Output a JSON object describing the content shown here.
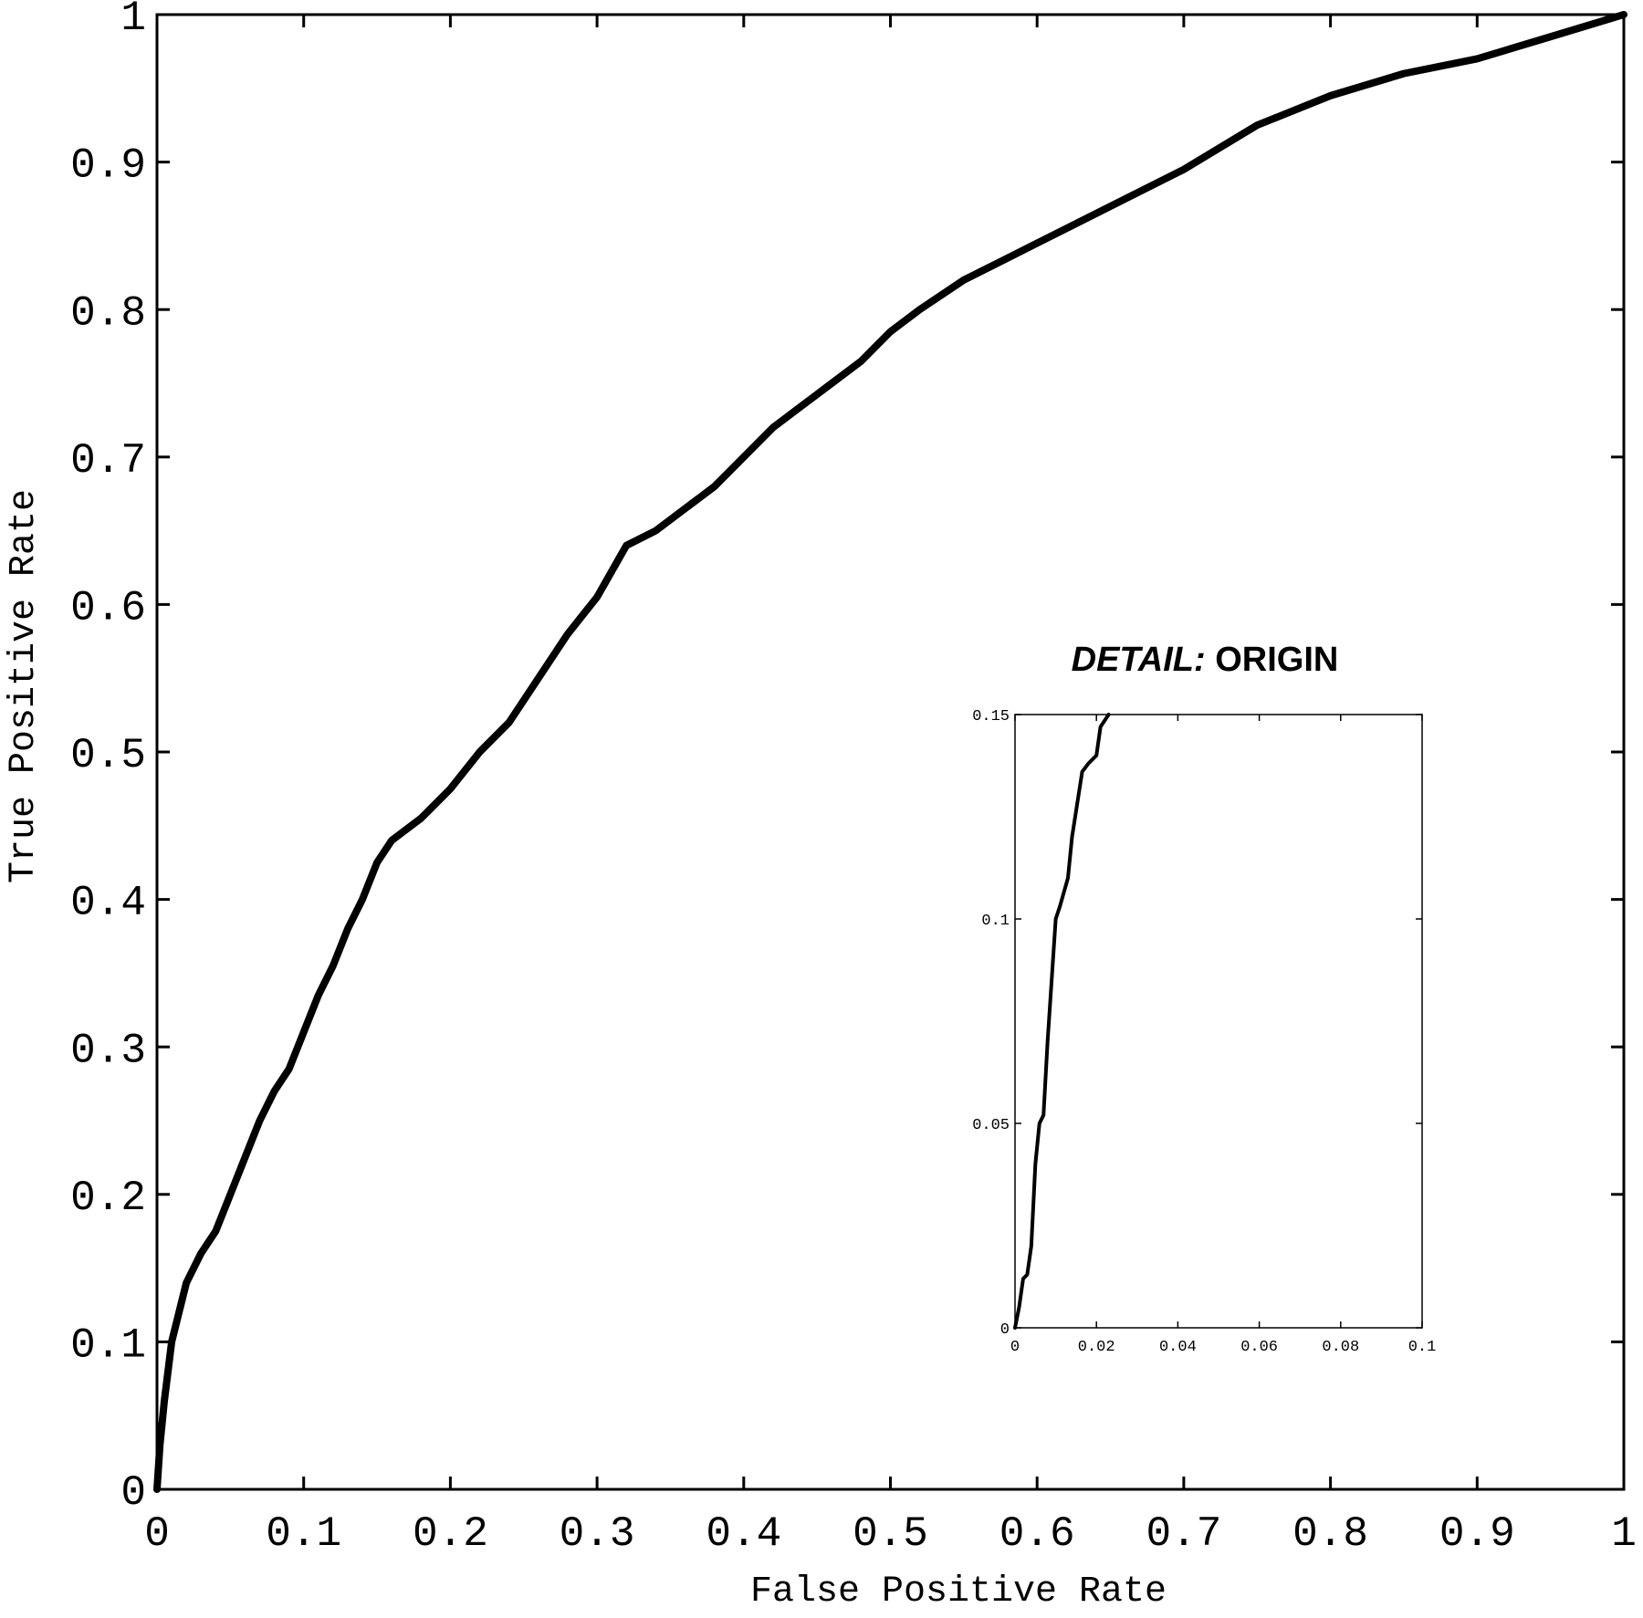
{
  "chart_data": [
    {
      "type": "line",
      "xlabel": "False Positive Rate",
      "ylabel": "True Positive Rate",
      "x": [
        0,
        0.002,
        0.005,
        0.01,
        0.015,
        0.02,
        0.03,
        0.04,
        0.05,
        0.06,
        0.07,
        0.08,
        0.09,
        0.1,
        0.11,
        0.12,
        0.13,
        0.14,
        0.15,
        0.16,
        0.18,
        0.2,
        0.22,
        0.24,
        0.26,
        0.28,
        0.3,
        0.32,
        0.34,
        0.36,
        0.38,
        0.4,
        0.42,
        0.44,
        0.46,
        0.48,
        0.5,
        0.52,
        0.55,
        0.58,
        0.6,
        0.65,
        0.7,
        0.75,
        0.8,
        0.85,
        0.9,
        0.95,
        1
      ],
      "values": [
        0,
        0.03,
        0.06,
        0.1,
        0.12,
        0.14,
        0.16,
        0.175,
        0.2,
        0.225,
        0.25,
        0.27,
        0.285,
        0.31,
        0.335,
        0.355,
        0.38,
        0.4,
        0.425,
        0.44,
        0.455,
        0.475,
        0.5,
        0.52,
        0.55,
        0.58,
        0.605,
        0.64,
        0.65,
        0.665,
        0.68,
        0.7,
        0.72,
        0.735,
        0.75,
        0.765,
        0.785,
        0.8,
        0.82,
        0.835,
        0.845,
        0.87,
        0.895,
        0.925,
        0.945,
        0.96,
        0.97,
        0.985,
        1
      ],
      "color": "#000000",
      "xlim": [
        0,
        1
      ],
      "ylim": [
        0,
        1
      ],
      "xticks": [
        0,
        0.1,
        0.2,
        0.3,
        0.4,
        0.5,
        0.6,
        0.7,
        0.8,
        0.9,
        1
      ],
      "yticks": [
        0,
        0.1,
        0.2,
        0.3,
        0.4,
        0.5,
        0.6,
        0.7,
        0.8,
        0.9,
        1
      ]
    },
    {
      "type": "line",
      "title_italic": "DETAIL:",
      "title": "ORIGIN",
      "x": [
        0,
        0.001,
        0.002,
        0.003,
        0.004,
        0.005,
        0.006,
        0.007,
        0.008,
        0.009,
        0.01,
        0.011,
        0.013,
        0.014,
        0.0165,
        0.018,
        0.02,
        0.021,
        0.023
      ],
      "values": [
        0,
        0.005,
        0.012,
        0.013,
        0.02,
        0.04,
        0.05,
        0.052,
        0.07,
        0.085,
        0.1,
        0.103,
        0.11,
        0.12,
        0.136,
        0.138,
        0.14,
        0.147,
        0.15
      ],
      "color": "#000000",
      "xlim": [
        0,
        0.1
      ],
      "ylim": [
        0,
        0.15
      ],
      "xticks": [
        0,
        0.02,
        0.04,
        0.06,
        0.08,
        0.1
      ],
      "yticks": [
        0,
        0.05,
        0.1,
        0.15
      ]
    }
  ]
}
